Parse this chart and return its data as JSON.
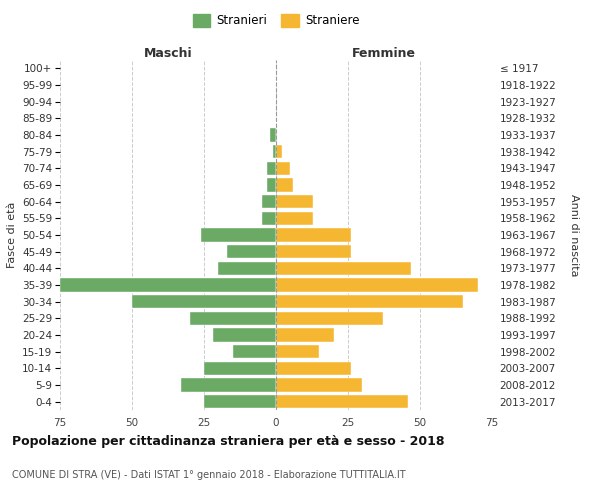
{
  "age_groups": [
    "0-4",
    "5-9",
    "10-14",
    "15-19",
    "20-24",
    "25-29",
    "30-34",
    "35-39",
    "40-44",
    "45-49",
    "50-54",
    "55-59",
    "60-64",
    "65-69",
    "70-74",
    "75-79",
    "80-84",
    "85-89",
    "90-94",
    "95-99",
    "100+"
  ],
  "birth_years": [
    "2013-2017",
    "2008-2012",
    "2003-2007",
    "1998-2002",
    "1993-1997",
    "1988-1992",
    "1983-1987",
    "1978-1982",
    "1973-1977",
    "1968-1972",
    "1963-1967",
    "1958-1962",
    "1953-1957",
    "1948-1952",
    "1943-1947",
    "1938-1942",
    "1933-1937",
    "1928-1932",
    "1923-1927",
    "1918-1922",
    "≤ 1917"
  ],
  "males": [
    25,
    33,
    25,
    15,
    22,
    30,
    50,
    75,
    20,
    17,
    26,
    5,
    5,
    3,
    3,
    1,
    2,
    0,
    0,
    0,
    0
  ],
  "females": [
    46,
    30,
    26,
    15,
    20,
    37,
    65,
    70,
    47,
    26,
    26,
    13,
    13,
    6,
    5,
    2,
    0,
    0,
    0,
    0,
    0
  ],
  "male_color": "#6aaa64",
  "female_color": "#f5b731",
  "background_color": "#ffffff",
  "grid_color": "#cccccc",
  "bar_edge_color": "#ffffff",
  "xlim": 75,
  "title": "Popolazione per cittadinanza straniera per età e sesso - 2018",
  "subtitle": "COMUNE DI STRA (VE) - Dati ISTAT 1° gennaio 2018 - Elaborazione TUTTITALIA.IT",
  "legend_male": "Stranieri",
  "legend_female": "Straniere",
  "ylabel_left": "Fasce di età",
  "ylabel_right": "Anni di nascita",
  "maschi_label": "Maschi",
  "femmine_label": "Femmine"
}
